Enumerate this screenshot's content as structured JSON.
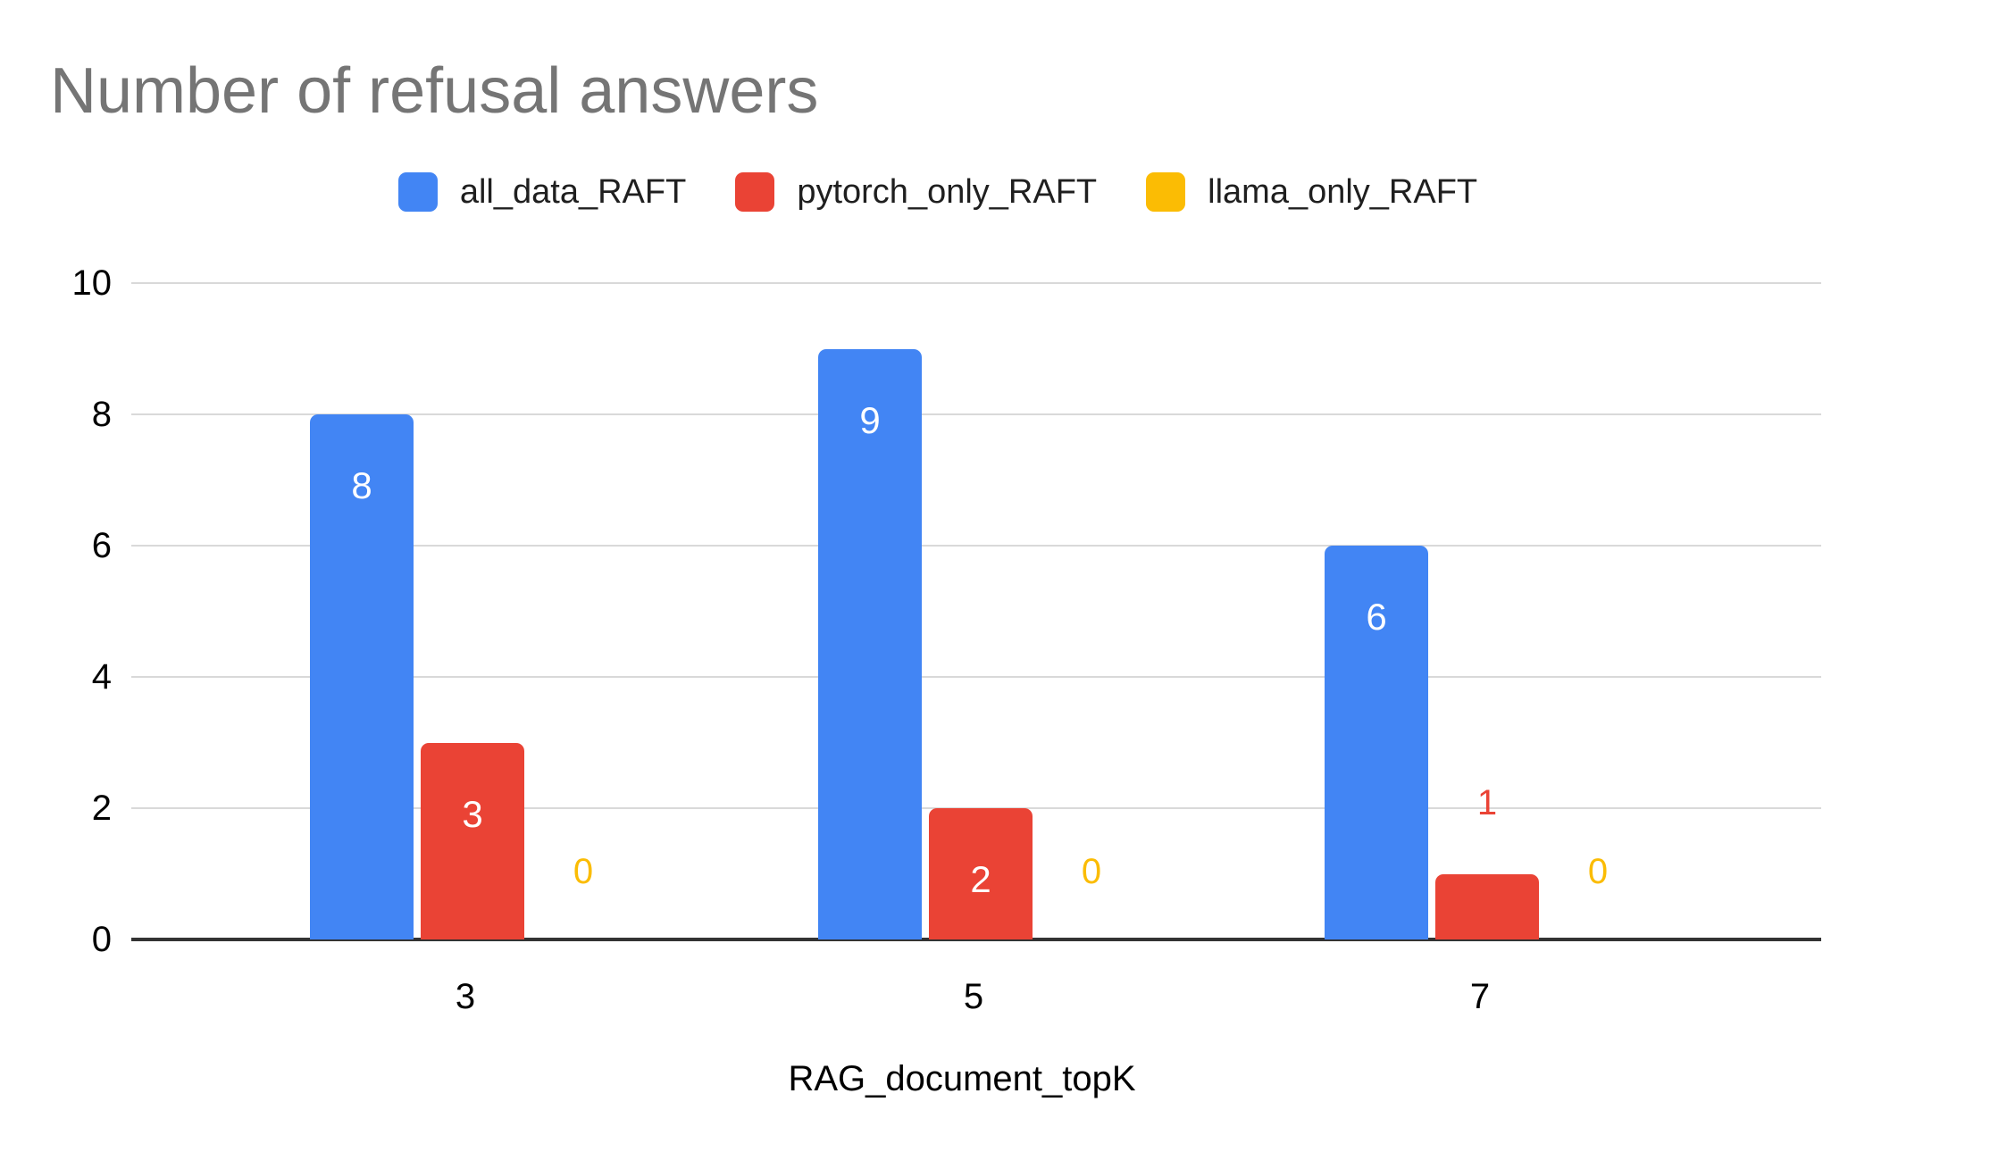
{
  "chart_data": {
    "type": "bar",
    "title": "Number of refusal answers",
    "xlabel": "RAG_document_topK",
    "ylabel": "",
    "categories": [
      "3",
      "5",
      "7"
    ],
    "series": [
      {
        "name": "all_data_RAFT",
        "color": "#4285F4",
        "values": [
          8,
          9,
          6
        ]
      },
      {
        "name": "pytorch_only_RAFT",
        "color": "#EA4335",
        "values": [
          3,
          2,
          1
        ]
      },
      {
        "name": "llama_only_RAFT",
        "color": "#FBBC04",
        "values": [
          0,
          0,
          0
        ]
      }
    ],
    "ylim": [
      0,
      10
    ],
    "yticks": [
      0,
      2,
      4,
      6,
      8,
      10
    ],
    "grid": true,
    "legend_position": "top",
    "data_labels": true
  },
  "palette": {
    "background": "#ffffff",
    "title_text": "#757575",
    "legend_text": "#1f1f1f",
    "axis_text": "#000000",
    "gridline": "#d9d9d9",
    "axis_line": "#333333",
    "in_bar_label": "#ffffff"
  }
}
